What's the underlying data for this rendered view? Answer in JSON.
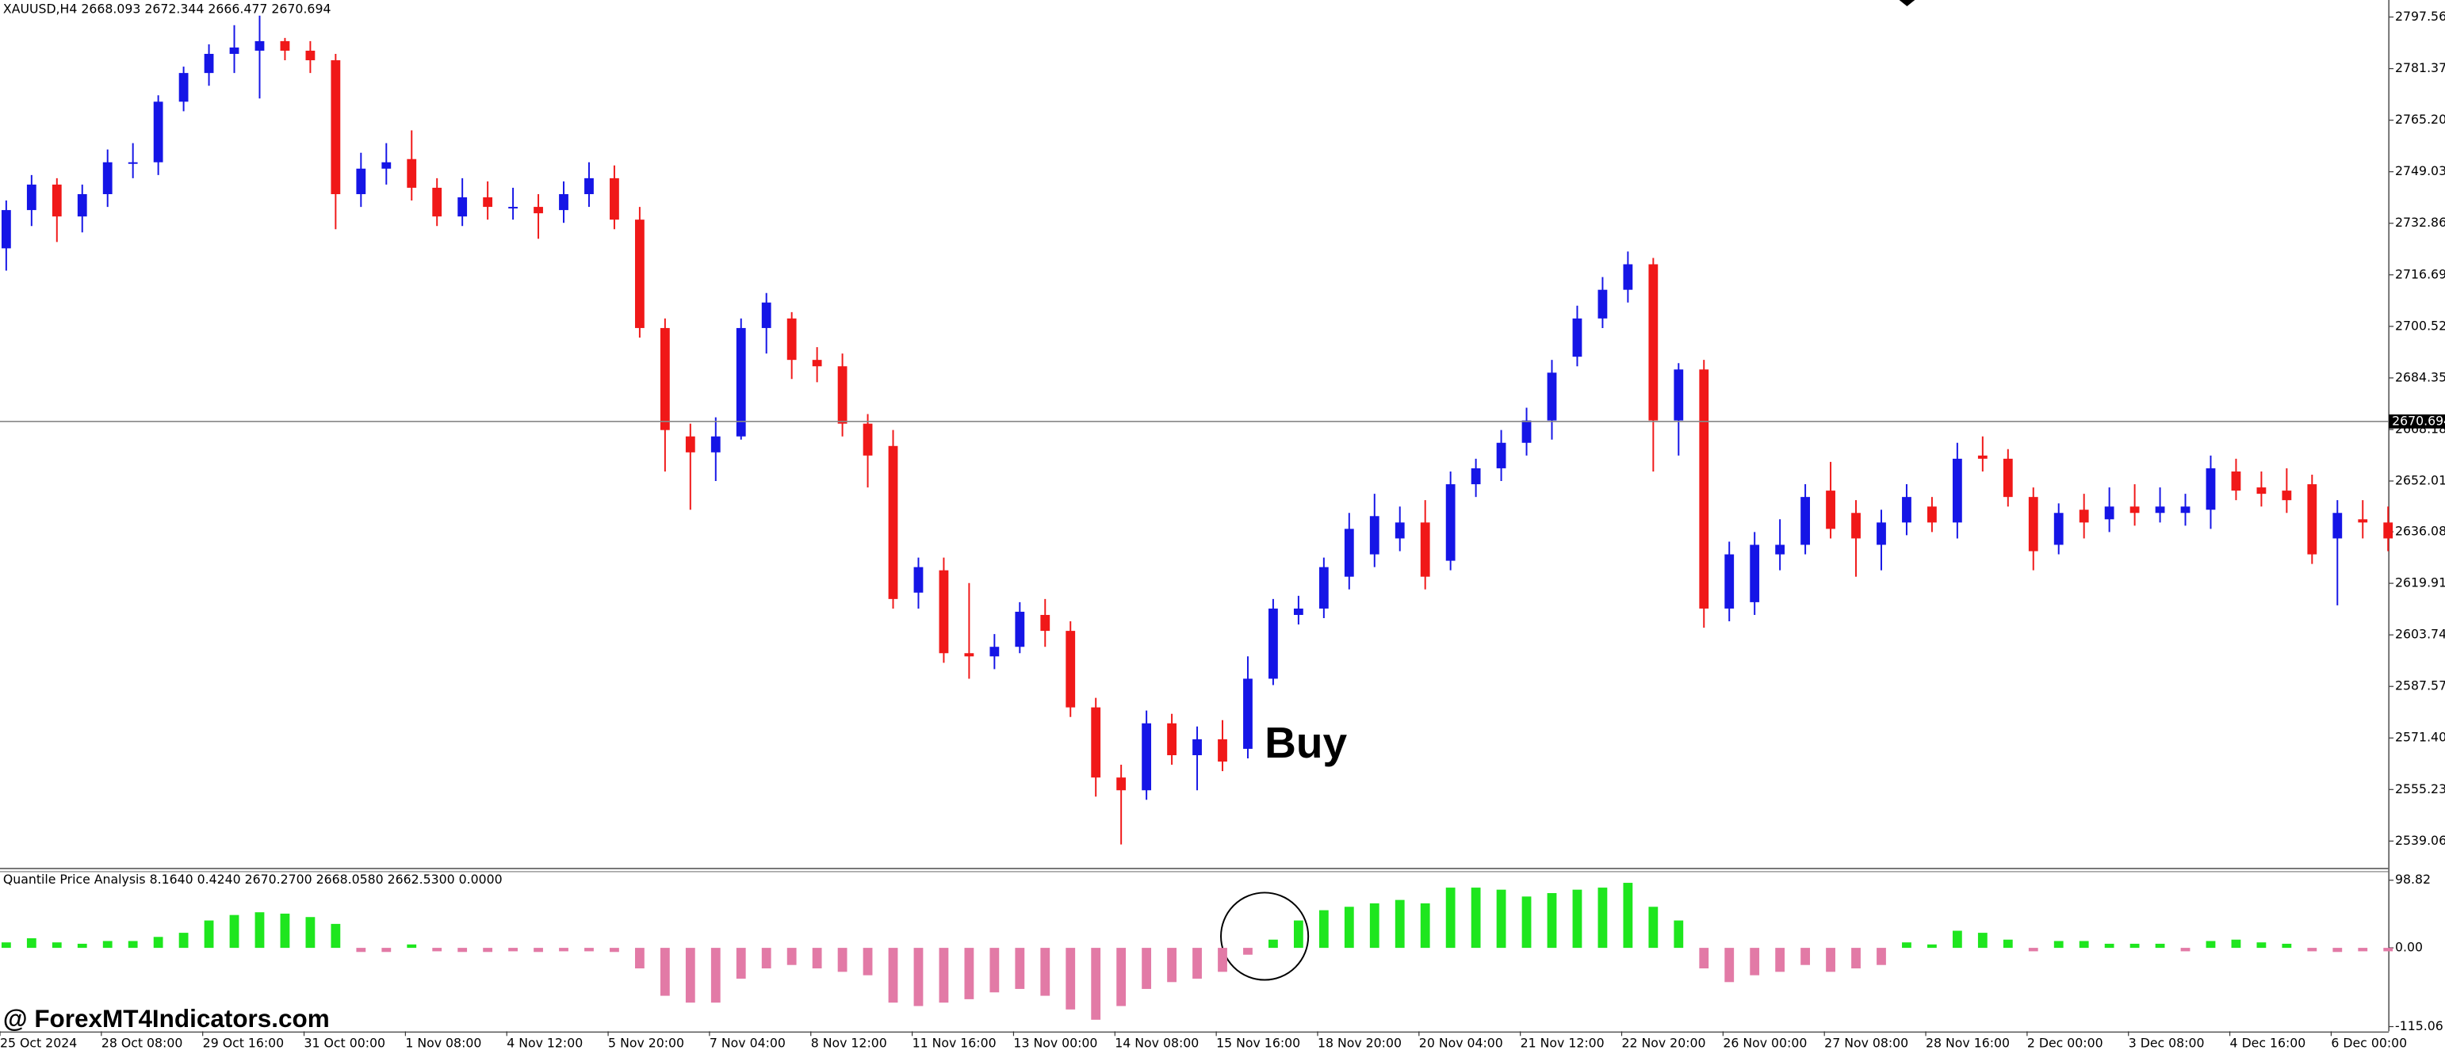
{
  "watermark": "@ ForexMT4Indicators.com",
  "chart_data": [
    {
      "type": "candlestick",
      "title": "XAUUSD,H4  2668.093 2672.344 2666.477 2670.694",
      "annotation": "Buy",
      "up_color": "#1515e6",
      "down_color": "#f01818",
      "ylim": [
        2530.7,
        2802.9
      ],
      "yticks": [
        {
          "value": 2797.56,
          "label": "2797.560"
        },
        {
          "value": 2781.37,
          "label": "2781.370"
        },
        {
          "value": 2765.2,
          "label": "2765.200"
        },
        {
          "value": 2749.03,
          "label": "2749.030"
        },
        {
          "value": 2732.86,
          "label": "2732.860"
        },
        {
          "value": 2716.69,
          "label": "2716.690"
        },
        {
          "value": 2700.52,
          "label": "2700.520"
        },
        {
          "value": 2684.35,
          "label": "2684.350"
        },
        {
          "value": 2668.18,
          "label": "2668.180"
        },
        {
          "value": 2652.01,
          "label": "2652.010"
        },
        2636.085,
        2619.915,
        2603.745,
        2587.575,
        2571.405,
        2555.235,
        2539.065
      ],
      "last_price": 2670.694,
      "open": [
        2725,
        2737,
        2745,
        2735,
        2742,
        2752,
        2752,
        2771,
        2780,
        2786,
        2787,
        2790,
        2787,
        2784,
        2742,
        2750,
        2753,
        2744,
        2735,
        2741,
        2738,
        2738,
        2737,
        2742,
        2747,
        2734,
        2700,
        2666,
        2661,
        2666,
        2700,
        2703,
        2690,
        2688,
        2670,
        2663,
        2617,
        2624,
        2598,
        2597,
        2600,
        2610,
        2605,
        2581,
        2559,
        2555,
        2576,
        2566,
        2571,
        2568,
        2590,
        2610,
        2612,
        2622,
        2629,
        2634,
        2639,
        2627,
        2651,
        2656,
        2664,
        2671,
        2691,
        2703,
        2712,
        2720,
        2671,
        2687,
        2612,
        2614,
        2629,
        2632,
        2649,
        2642,
        2632,
        2639,
        2644,
        2639,
        2660,
        2659,
        2647,
        2632,
        2643,
        2640,
        2644,
        2642,
        2642,
        2643,
        2655,
        2650,
        2649,
        2651,
        2634,
        2640,
        2639
      ],
      "high": [
        2740,
        2748,
        2747,
        2745,
        2756,
        2758,
        2773,
        2782,
        2789,
        2795,
        2798,
        2791,
        2790,
        2786,
        2755,
        2758,
        2762,
        2747,
        2747,
        2746,
        2744,
        2742,
        2746,
        2752,
        2751,
        2738,
        2703,
        2670,
        2672,
        2703,
        2711,
        2705,
        2694,
        2692,
        2673,
        2668,
        2628,
        2628,
        2620,
        2604,
        2614,
        2615,
        2608,
        2584,
        2563,
        2580,
        2579,
        2575,
        2577,
        2597,
        2615,
        2616,
        2628,
        2642,
        2648,
        2644,
        2646,
        2655,
        2659,
        2668,
        2675,
        2690,
        2707,
        2716,
        2724,
        2722,
        2689,
        2690,
        2633,
        2636,
        2640,
        2651,
        2658,
        2646,
        2643,
        2651,
        2647,
        2664,
        2666,
        2662,
        2650,
        2645,
        2648,
        2650,
        2651,
        2650,
        2648,
        2660,
        2659,
        2655,
        2656,
        2654,
        2646,
        2646,
        2644
      ],
      "low": [
        2718,
        2732,
        2727,
        2730,
        2738,
        2747,
        2748,
        2768,
        2776,
        2780,
        2772,
        2784,
        2780,
        2731,
        2738,
        2745,
        2740,
        2732,
        2732,
        2734,
        2734,
        2728,
        2733,
        2738,
        2731,
        2697,
        2655,
        2643,
        2652,
        2665,
        2692,
        2684,
        2683,
        2666,
        2650,
        2612,
        2612,
        2595,
        2590,
        2593,
        2598,
        2600,
        2578,
        2553,
        2538,
        2552,
        2563,
        2555,
        2561,
        2565,
        2588,
        2607,
        2609,
        2618,
        2625,
        2630,
        2618,
        2624,
        2647,
        2652,
        2660,
        2665,
        2688,
        2700,
        2708,
        2655,
        2660,
        2606,
        2608,
        2610,
        2624,
        2629,
        2634,
        2622,
        2624,
        2635,
        2636,
        2634,
        2655,
        2644,
        2624,
        2629,
        2634,
        2636,
        2638,
        2639,
        2638,
        2637,
        2646,
        2644,
        2642,
        2626,
        2613,
        2634,
        2630
      ],
      "close": [
        2737,
        2745,
        2735,
        2742,
        2752,
        2752,
        2771,
        2780,
        2786,
        2788,
        2790,
        2787,
        2784,
        2742,
        2750,
        2752,
        2744,
        2735,
        2741,
        2738,
        2738,
        2736,
        2742,
        2747,
        2734,
        2700,
        2668,
        2661,
        2666,
        2700,
        2708,
        2690,
        2688,
        2670,
        2660,
        2615,
        2625,
        2598,
        2597,
        2600,
        2611,
        2605,
        2581,
        2559,
        2555,
        2576,
        2566,
        2571,
        2564,
        2590,
        2612,
        2612,
        2625,
        2637,
        2641,
        2639,
        2622,
        2651,
        2656,
        2664,
        2671,
        2686,
        2703,
        2712,
        2720,
        2671,
        2687,
        2612,
        2629,
        2632,
        2632,
        2647,
        2637,
        2634,
        2639,
        2647,
        2639,
        2659,
        2659,
        2647,
        2630,
        2642,
        2639,
        2644,
        2642,
        2644,
        2644,
        2656,
        2649,
        2648,
        2646,
        2629,
        2642,
        2639,
        2634
      ]
    },
    {
      "type": "bar",
      "title": "Quantile Price Analysis 8.1640 0.4240 2670.2700 2668.0580 2662.5300 0.0000",
      "positive_color": "#1ee61e",
      "negative_color": "#e27aa6",
      "ylim": [
        -121.9,
        112.5
      ],
      "yticks": [
        98.82,
        {
          "value": 0,
          "label": "0.00"
        },
        -115.06
      ],
      "categories": [
        "25 Oct 2024",
        null,
        null,
        null,
        "28 Oct 08:00",
        null,
        null,
        null,
        "29 Oct 16:00",
        null,
        null,
        null,
        "31 Oct 00:00",
        null,
        null,
        null,
        "1 Nov 08:00",
        null,
        null,
        null,
        "4 Nov 12:00",
        null,
        null,
        null,
        "5 Nov 20:00",
        null,
        null,
        null,
        "7 Nov 04:00",
        null,
        null,
        null,
        "8 Nov 12:00",
        null,
        null,
        null,
        "11 Nov 16:00",
        null,
        null,
        null,
        "13 Nov 00:00",
        null,
        null,
        null,
        "14 Nov 08:00",
        null,
        null,
        null,
        "15 Nov 16:00",
        null,
        null,
        null,
        "18 Nov 20:00",
        null,
        null,
        null,
        "20 Nov 04:00",
        null,
        null,
        null,
        "21 Nov 12:00",
        null,
        null,
        null,
        "22 Nov 20:00",
        null,
        null,
        null,
        "26 Nov 00:00",
        null,
        null,
        null,
        "27 Nov 08:00",
        null,
        null,
        null,
        "28 Nov 16:00",
        null,
        null,
        null,
        "2 Dec 00:00",
        null,
        null,
        null,
        "3 Dec 08:00",
        null,
        null,
        null,
        "4 Dec 16:00",
        null,
        null,
        null,
        "6 Dec 00:00",
        null,
        null
      ],
      "values": [
        8,
        14,
        8,
        6,
        10,
        10,
        16,
        22,
        40,
        48,
        52,
        50,
        45,
        35,
        -6,
        -6,
        5,
        -5,
        -6,
        -6,
        -5,
        -6,
        -5,
        -5,
        -6,
        -30,
        -70,
        -80,
        -80,
        -45,
        -30,
        -25,
        -30,
        -35,
        -40,
        -80,
        -85,
        -80,
        -75,
        -65,
        -60,
        -70,
        -90,
        -105,
        -85,
        -60,
        -50,
        -45,
        -35,
        -10,
        12,
        40,
        55,
        60,
        65,
        70,
        65,
        88,
        88,
        85,
        75,
        80,
        85,
        88,
        95,
        60,
        40,
        -30,
        -50,
        -40,
        -35,
        -25,
        -35,
        -30,
        -25,
        8,
        5,
        25,
        22,
        12,
        -5,
        10,
        10,
        6,
        6,
        6,
        -5,
        10,
        12,
        8,
        6,
        -5,
        -6,
        -5,
        -5
      ]
    }
  ]
}
